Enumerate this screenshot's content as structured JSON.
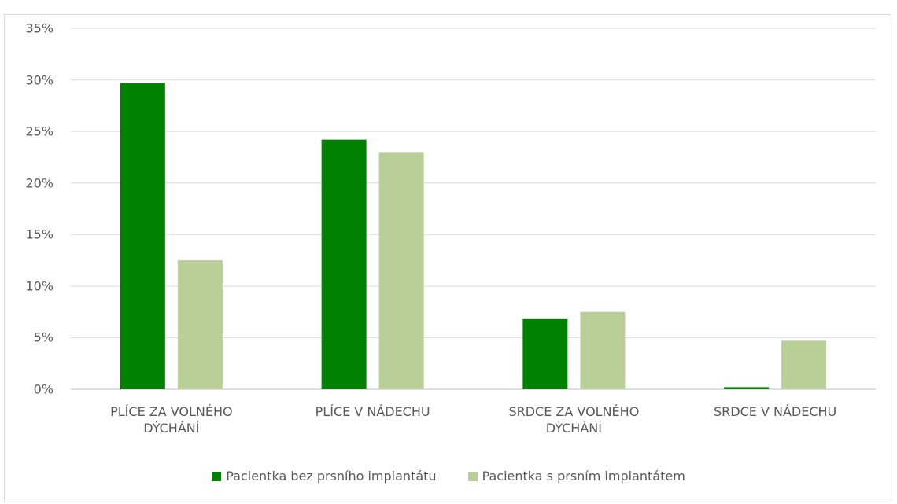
{
  "chart_data": {
    "type": "bar",
    "categories": [
      "PLÍCE ZA VOLNÉHO DÝCHÁNÍ",
      "PLÍCE V NÁDECHU",
      "SRDCE ZA VOLNÉHO DÝCHÁNÍ",
      "SRDCE V NÁDECHU"
    ],
    "series": [
      {
        "name": "Pacientka bez prsního implantátu",
        "color": "#008000",
        "values": [
          29.7,
          24.2,
          6.8,
          0.2
        ]
      },
      {
        "name": "Pacientka s prsním implantátem",
        "color": "#b8cf98",
        "values": [
          12.5,
          23.0,
          7.5,
          4.7
        ]
      }
    ],
    "ylim": [
      0,
      35
    ],
    "yticks": [
      {
        "value": 0,
        "label": "0%"
      },
      {
        "value": 5,
        "label": "5%"
      },
      {
        "value": 10,
        "label": "10%"
      },
      {
        "value": 15,
        "label": "15%"
      },
      {
        "value": 20,
        "label": "20%"
      },
      {
        "value": 25,
        "label": "25%"
      },
      {
        "value": 30,
        "label": "30%"
      },
      {
        "value": 35,
        "label": "35%"
      }
    ],
    "grid": true,
    "legend": "bottom"
  }
}
